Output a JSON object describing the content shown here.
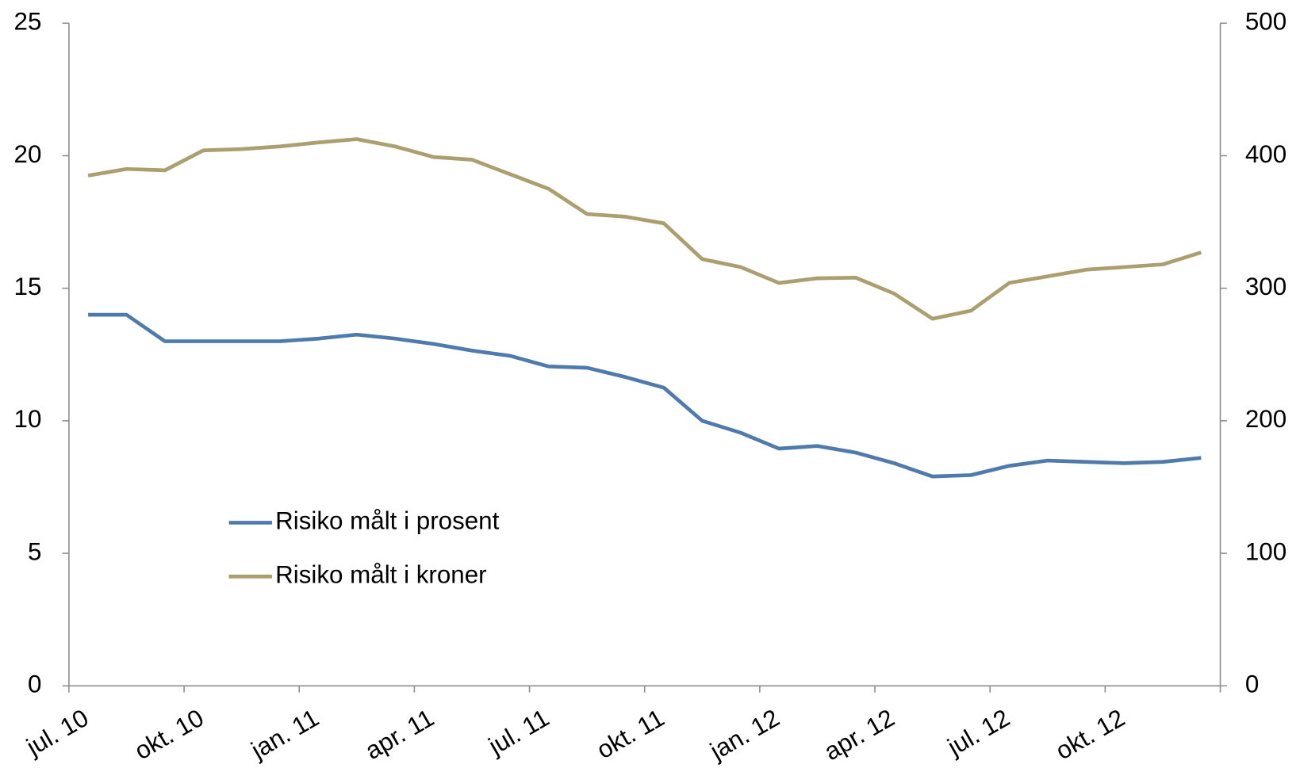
{
  "chart_data": {
    "type": "line",
    "categories": [
      "jul. 10",
      null,
      null,
      "okt. 10",
      null,
      null,
      "jan. 11",
      null,
      null,
      "apr. 11",
      null,
      null,
      "jul. 11",
      null,
      null,
      "okt. 11",
      null,
      null,
      "jan. 12",
      null,
      null,
      "apr. 12",
      null,
      null,
      "jul. 12",
      null,
      null,
      "okt. 12",
      null,
      null
    ],
    "series": [
      {
        "name": "Risiko målt i prosent",
        "color": "#4f7bac",
        "axis": "y",
        "values": [
          14.0,
          14.0,
          13.0,
          13.0,
          13.0,
          13.0,
          13.1,
          13.25,
          13.1,
          12.9,
          12.65,
          12.45,
          12.05,
          12.0,
          11.65,
          11.25,
          10.0,
          9.55,
          8.95,
          9.05,
          8.8,
          8.4,
          7.9,
          7.95,
          8.3,
          8.5,
          8.45,
          8.4,
          8.45,
          8.6
        ]
      },
      {
        "name": "Risiko målt i kroner",
        "color": "#ac9f6f",
        "axis": "y2",
        "values": [
          385,
          390,
          389,
          404,
          405,
          407,
          410,
          412.5,
          407,
          399,
          397,
          386,
          375,
          356,
          354,
          349,
          322,
          316,
          304,
          307.5,
          308,
          296,
          277,
          283,
          304,
          309,
          314,
          316,
          318,
          327
        ]
      }
    ],
    "ylim": [
      0,
      25
    ],
    "yticks": [
      0,
      5,
      10,
      15,
      20,
      25
    ],
    "y2lim": [
      0,
      500
    ],
    "y2ticks": [
      0,
      100,
      200,
      300,
      400,
      500
    ],
    "legend": "lower left"
  }
}
